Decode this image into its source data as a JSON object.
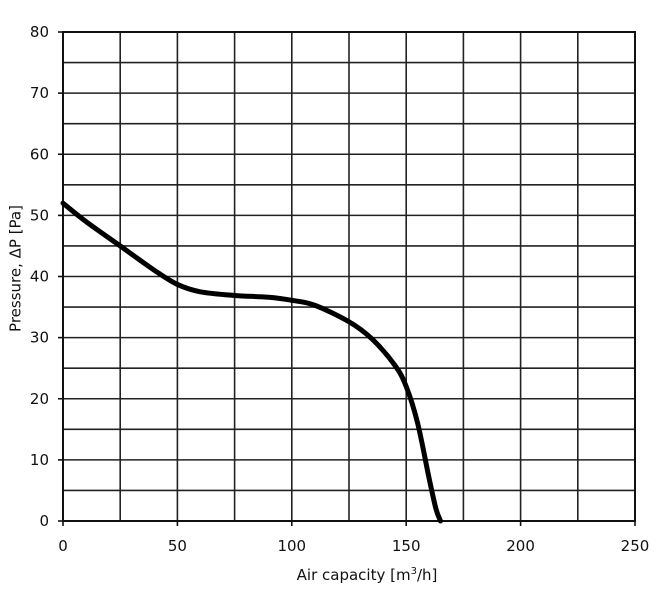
{
  "chart_data": {
    "type": "line",
    "title": "",
    "xlabel": "Air capacity [m",
    "xlabel_sup": "3",
    "xlabel_end": "/h]",
    "ylabel": "Pressure, ΔP [Pa]",
    "xlim": [
      0,
      250
    ],
    "ylim": [
      0,
      80
    ],
    "x_ticks": [
      0,
      50,
      100,
      150,
      200,
      250
    ],
    "y_ticks": [
      0,
      10,
      20,
      30,
      40,
      50,
      60,
      70,
      80
    ],
    "x_gridlines": [
      0,
      25,
      50,
      75,
      100,
      125,
      150,
      175,
      200,
      225,
      250
    ],
    "y_gridlines": [
      0,
      5,
      10,
      15,
      20,
      25,
      30,
      35,
      40,
      45,
      50,
      55,
      60,
      65,
      70,
      75,
      80
    ],
    "grid": true,
    "legend": "none",
    "series": [
      {
        "color": "#000000",
        "x": [
          0,
          10,
          25,
          40,
          50,
          60,
          75,
          90,
          100,
          110,
          125,
          135,
          145,
          150,
          155,
          160,
          163,
          165
        ],
        "y": [
          52,
          49,
          45,
          41,
          38.7,
          37.5,
          36.9,
          36.6,
          36.1,
          35.3,
          32.6,
          29.8,
          25.5,
          22,
          16,
          7,
          2,
          0
        ]
      }
    ]
  }
}
